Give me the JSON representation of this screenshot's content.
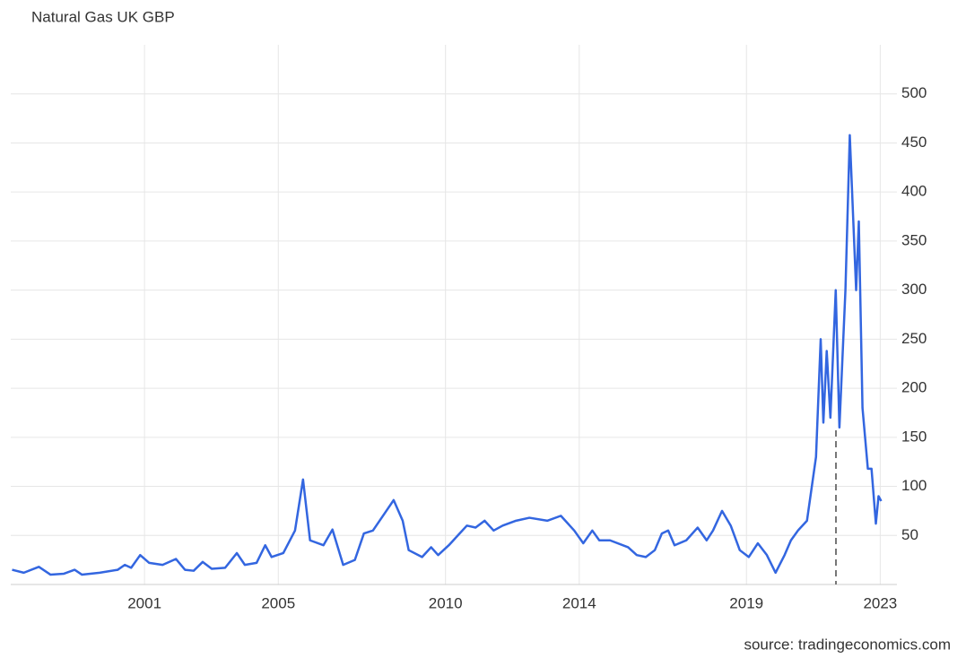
{
  "chart_data": {
    "type": "line",
    "title": "Natural Gas UK GBP",
    "source": "source: tradingeconomics.com",
    "series": [
      {
        "name": "Natural Gas UK GBP",
        "color": "#3366e0",
        "x": [
          1997.04,
          1997.39,
          1997.84,
          1998.19,
          1998.59,
          1998.91,
          1999.13,
          1999.66,
          2000.2,
          2000.41,
          2000.6,
          2000.87,
          2001.14,
          2001.54,
          2001.94,
          2002.21,
          2002.47,
          2002.74,
          2003.01,
          2003.41,
          2003.76,
          2004.0,
          2004.35,
          2004.61,
          2004.8,
          2005.15,
          2005.5,
          2005.74,
          2005.95,
          2006.35,
          2006.62,
          2006.94,
          2007.29,
          2007.56,
          2007.83,
          2008.23,
          2008.45,
          2008.72,
          2008.9,
          2009.3,
          2009.57,
          2009.78,
          2010.1,
          2010.37,
          2010.64,
          2010.9,
          2011.17,
          2011.44,
          2011.71,
          2012.11,
          2012.51,
          2013.05,
          2013.45,
          2013.85,
          2014.12,
          2014.39,
          2014.6,
          2014.92,
          2015.46,
          2015.72,
          2015.99,
          2016.26,
          2016.47,
          2016.66,
          2016.85,
          2017.2,
          2017.54,
          2017.81,
          2018.0,
          2018.27,
          2018.53,
          2018.8,
          2019.07,
          2019.34,
          2019.61,
          2019.87,
          2020.14,
          2020.33,
          2020.54,
          2020.81,
          2021.08,
          2021.22,
          2021.3,
          2021.4,
          2021.51,
          2021.67,
          2021.78,
          2021.96,
          2022.09,
          2022.28,
          2022.36,
          2022.47,
          2022.63,
          2022.74,
          2022.87,
          2022.95,
          2023.03
        ],
        "values": [
          15,
          12,
          18,
          10,
          11,
          15,
          10,
          12,
          15,
          20,
          17,
          30,
          22,
          20,
          26,
          15,
          14,
          23,
          16,
          17,
          32,
          20,
          22,
          40,
          28,
          32,
          55,
          107,
          45,
          40,
          56,
          20,
          25,
          52,
          55,
          75,
          86,
          65,
          35,
          28,
          38,
          30,
          40,
          50,
          60,
          58,
          65,
          55,
          60,
          65,
          68,
          65,
          70,
          55,
          42,
          55,
          45,
          45,
          38,
          30,
          28,
          35,
          52,
          55,
          40,
          45,
          58,
          45,
          55,
          75,
          60,
          35,
          28,
          42,
          30,
          12,
          30,
          45,
          55,
          65,
          130,
          250,
          165,
          238,
          170,
          300,
          160,
          300,
          458,
          300,
          370,
          180,
          118,
          118,
          62,
          90,
          85
        ]
      }
    ],
    "xlim": [
      1997,
      2023.5
    ],
    "xticks": [
      2001,
      2005,
      2010,
      2014,
      2019,
      2023
    ],
    "ylim": [
      0,
      550
    ],
    "yticks": [
      50,
      100,
      150,
      200,
      250,
      300,
      350,
      400,
      450,
      500
    ],
    "grid": true
  }
}
